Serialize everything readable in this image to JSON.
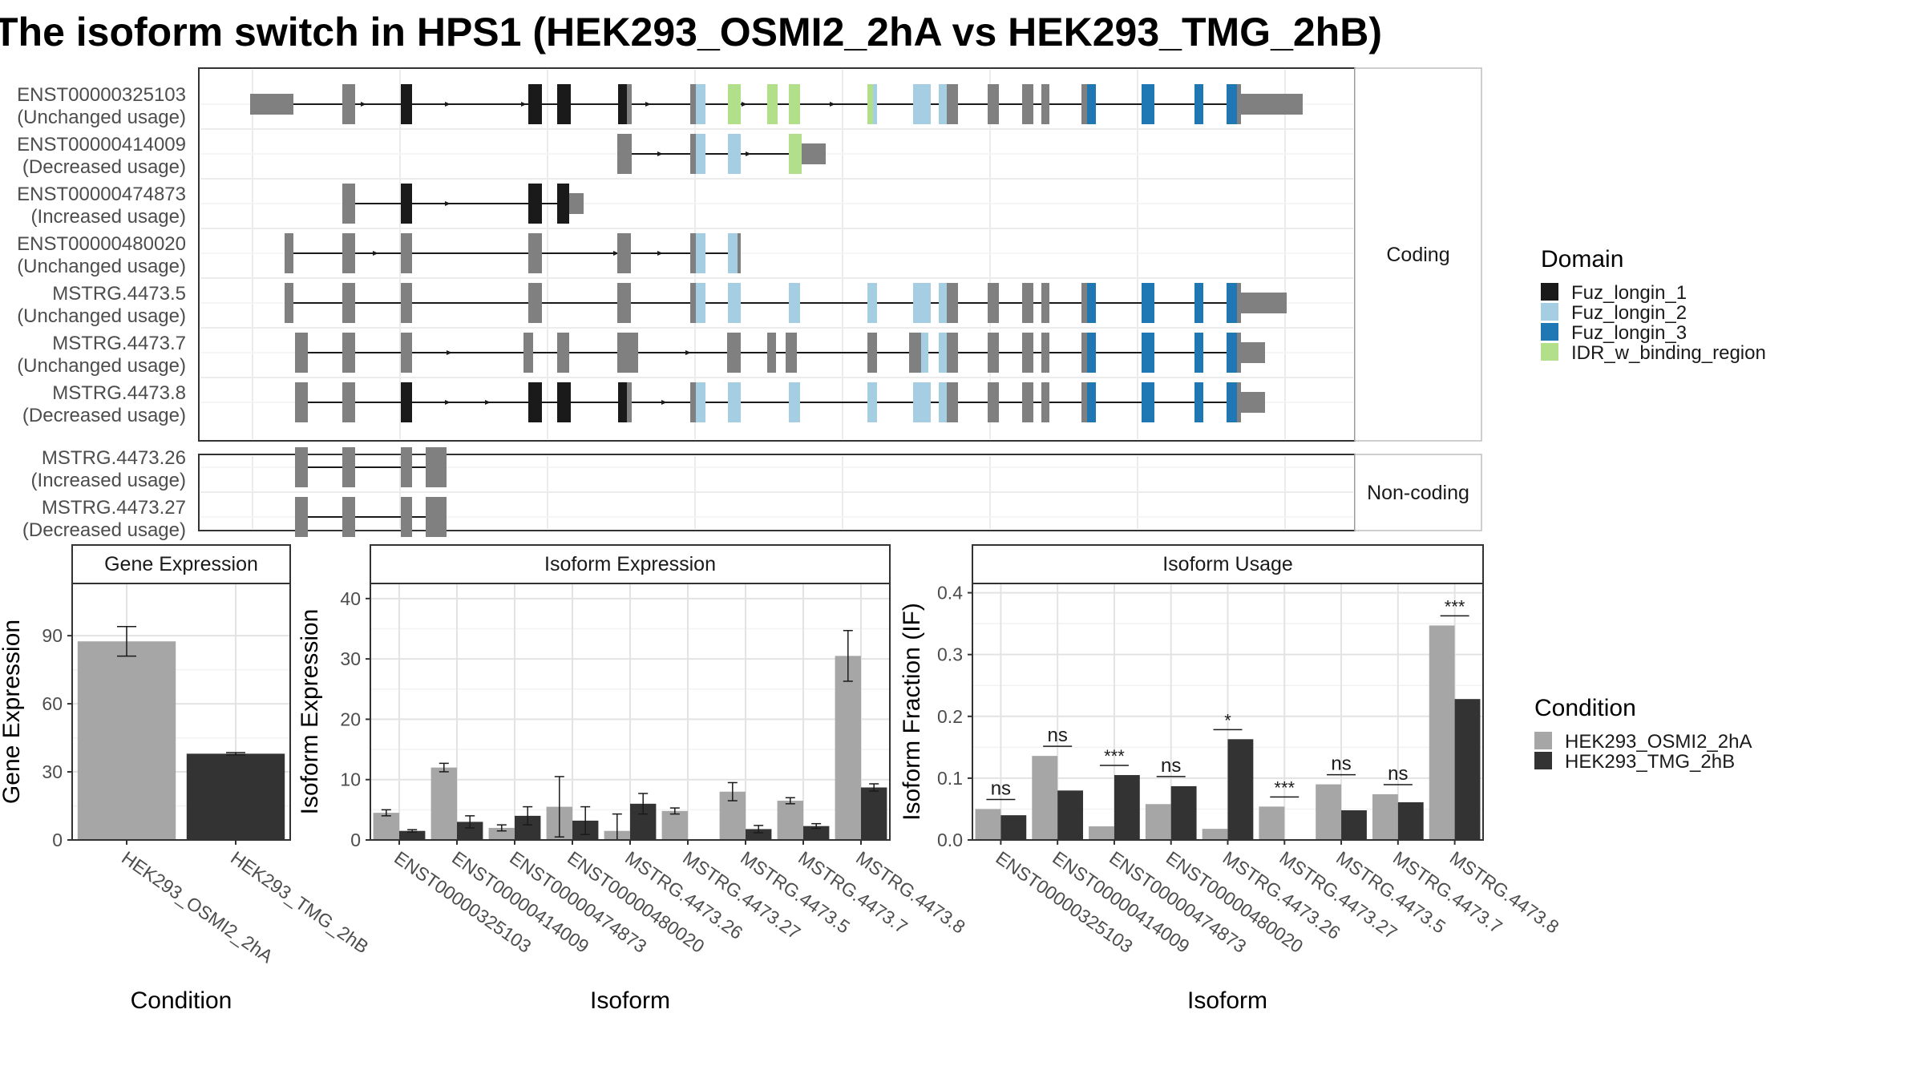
{
  "title": "The isoform switch in HPS1 (HEK293_OSMI2_2hA vs HEK293_TMG_2hB)",
  "colors": {
    "utr": "#808080",
    "cond1": "#a6a6a6",
    "cond2": "#333333",
    "Fuz_longin_1": "#1a1a1a",
    "Fuz_longin_2": "#a6cee3",
    "Fuz_longin_3": "#1f78b4",
    "IDR_w_binding_region": "#b2df8a"
  },
  "structure": {
    "coding_label": "Coding",
    "noncoding_label": "Non-coding",
    "coding": [
      {
        "id": "ENST00000325103",
        "usage": "(Unchanged usage)"
      },
      {
        "id": "ENST00000414009",
        "usage": "(Decreased usage)"
      },
      {
        "id": "ENST00000474873",
        "usage": "(Increased usage)"
      },
      {
        "id": "ENST00000480020",
        "usage": "(Unchanged usage)"
      },
      {
        "id": "MSTRG.4473.5",
        "usage": "(Unchanged usage)"
      },
      {
        "id": "MSTRG.4473.7",
        "usage": "(Unchanged usage)"
      },
      {
        "id": "MSTRG.4473.8",
        "usage": "(Decreased usage)"
      }
    ],
    "noncoding": [
      {
        "id": "MSTRG.4473.26",
        "usage": "(Increased usage)"
      },
      {
        "id": "MSTRG.4473.27",
        "usage": "(Decreased usage)"
      }
    ]
  },
  "domain_legend": {
    "title": "Domain",
    "items": [
      "Fuz_longin_1",
      "Fuz_longin_2",
      "Fuz_longin_3",
      "IDR_w_binding_region"
    ]
  },
  "condition_legend": {
    "title": "Condition",
    "items": [
      "HEK293_OSMI2_2hA",
      "HEK293_TMG_2hB"
    ]
  },
  "chart_data": [
    {
      "type": "bar",
      "title": "Gene Expression",
      "xlabel": "Condition",
      "ylabel": "Gene Expression",
      "categories": [
        "HEK293_OSMI2_2hA",
        "HEK293_TMG_2hB"
      ],
      "values": [
        87.5,
        38.0
      ],
      "errors": [
        6.5,
        0.5
      ],
      "ylim": [
        0,
        113
      ],
      "yticks": [
        0,
        30,
        60,
        90
      ]
    },
    {
      "type": "bar",
      "title": "Isoform Expression",
      "xlabel": "Isoform",
      "ylabel": "Isoform Expression",
      "categories": [
        "ENST00000325103",
        "ENST00000414009",
        "ENST00000474873",
        "ENST00000480020",
        "MSTRG.4473.26",
        "MSTRG.4473.27",
        "MSTRG.4473.5",
        "MSTRG.4473.7",
        "MSTRG.4473.8"
      ],
      "series": [
        {
          "name": "HEK293_OSMI2_2hA",
          "values": [
            4.5,
            12.0,
            2.0,
            5.5,
            1.5,
            4.8,
            8.0,
            6.5,
            30.5
          ],
          "errors": [
            0.5,
            0.7,
            0.5,
            5.0,
            2.8,
            0.5,
            1.5,
            0.5,
            4.2
          ]
        },
        {
          "name": "HEK293_TMG_2hB",
          "values": [
            1.5,
            3.0,
            4.0,
            3.2,
            6.0,
            0.0,
            1.8,
            2.3,
            8.7
          ],
          "errors": [
            0.2,
            1.0,
            1.5,
            2.3,
            1.7,
            0.0,
            0.6,
            0.4,
            0.6
          ]
        }
      ],
      "ylim": [
        0,
        42.5
      ],
      "yticks": [
        0,
        10,
        20,
        30,
        40
      ]
    },
    {
      "type": "bar",
      "title": "Isoform Usage",
      "xlabel": "Isoform",
      "ylabel": "Isoform Fraction (IF)",
      "categories": [
        "ENST00000325103",
        "ENST00000414009",
        "ENST00000474873",
        "ENST00000480020",
        "MSTRG.4473.26",
        "MSTRG.4473.27",
        "MSTRG.4473.5",
        "MSTRG.4473.7",
        "MSTRG.4473.8"
      ],
      "series": [
        {
          "name": "HEK293_OSMI2_2hA",
          "values": [
            0.05,
            0.136,
            0.022,
            0.058,
            0.018,
            0.054,
            0.09,
            0.074,
            0.347
          ]
        },
        {
          "name": "HEK293_TMG_2hB",
          "values": [
            0.04,
            0.08,
            0.105,
            0.087,
            0.163,
            0.0,
            0.048,
            0.061,
            0.228
          ]
        }
      ],
      "significance": [
        "ns",
        "ns",
        "***",
        "ns",
        "*",
        "***",
        "ns",
        "ns",
        "***"
      ],
      "ylim": [
        0,
        0.415
      ],
      "yticks": [
        0.0,
        0.1,
        0.2,
        0.3,
        0.4
      ],
      "ytick_labels": [
        "0.0",
        "0.1",
        "0.2",
        "0.3",
        "0.4"
      ]
    }
  ]
}
